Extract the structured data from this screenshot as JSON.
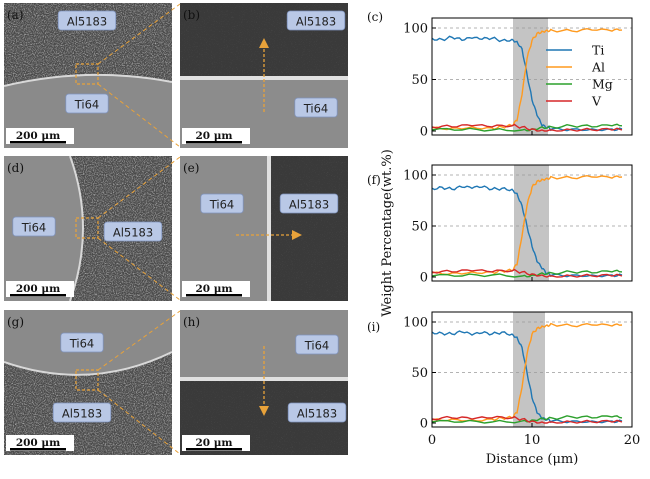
{
  "micrographs": [
    {
      "letter": "(a)",
      "labels": [
        "Al5183",
        "Ti64"
      ],
      "scale": "200 μm"
    },
    {
      "letter": "(b)",
      "labels": [
        "Al5183",
        "Ti64"
      ],
      "scale": "20 μm"
    },
    {
      "letter": "(d)",
      "labels": [
        "Ti64",
        "Al5183"
      ],
      "scale": "200 μm"
    },
    {
      "letter": "(e)",
      "labels": [
        "Ti64",
        "Al5183"
      ],
      "scale": "20 μm"
    },
    {
      "letter": "(g)",
      "labels": [
        "Ti64",
        "Al5183"
      ],
      "scale": "200 μm"
    },
    {
      "letter": "(h)",
      "labels": [
        "Ti64",
        "Al5183"
      ],
      "scale": "20 μm"
    }
  ],
  "chart_data": [
    {
      "type": "line",
      "panel": "(c)",
      "xlabel": "",
      "ylabel": "",
      "xlim": [
        0,
        20
      ],
      "ylim": [
        0,
        100
      ],
      "yticks": [
        "0",
        "50",
        "100"
      ],
      "xticks": [],
      "interface": [
        8.1,
        11.6
      ],
      "legend": {
        "placement": "inside-right",
        "entries": [
          "Ti",
          "Al",
          "Mg",
          "V"
        ]
      },
      "colors": {
        "Ti": "#1f77b4",
        "Al": "#ff9a1f",
        "Mg": "#2ca02c",
        "V": "#d62728"
      },
      "series": [
        {
          "name": "Ti",
          "x": [
            0,
            1,
            2,
            3,
            4,
            5,
            6,
            7,
            8,
            8.5,
            9,
            9.5,
            10,
            10.5,
            11,
            11.5,
            12,
            14,
            16,
            18,
            19
          ],
          "values": [
            90,
            89,
            91,
            88,
            90,
            89,
            90,
            88,
            89,
            87,
            80,
            55,
            30,
            15,
            5,
            3,
            2,
            2,
            2,
            2,
            2
          ]
        },
        {
          "name": "Al",
          "x": [
            0,
            2,
            4,
            6,
            7,
            8,
            8.5,
            9,
            9.5,
            10,
            10.5,
            11,
            11.5,
            12,
            14,
            16,
            18,
            19
          ],
          "values": [
            3,
            3,
            4,
            3,
            4,
            5,
            10,
            35,
            70,
            88,
            95,
            97,
            98,
            98,
            97,
            98,
            97,
            98
          ]
        },
        {
          "name": "Mg",
          "x": [
            0,
            3,
            6,
            9,
            10,
            11,
            12,
            14,
            16,
            18,
            19
          ],
          "values": [
            1,
            1,
            1,
            1,
            2,
            4,
            4,
            5,
            4,
            5,
            5
          ]
        },
        {
          "name": "V",
          "x": [
            0,
            2,
            4,
            6,
            8,
            9,
            10,
            11,
            12,
            14,
            16,
            18,
            19
          ],
          "values": [
            4,
            4,
            5,
            4,
            5,
            4,
            2,
            1,
            1,
            1,
            1,
            1,
            1
          ]
        }
      ]
    },
    {
      "type": "line",
      "panel": "(f)",
      "xlabel": "",
      "ylabel": "Weight Percentage(wt.%)",
      "xlim": [
        0,
        20
      ],
      "ylim": [
        0,
        100
      ],
      "yticks": [
        "0",
        "50",
        "100"
      ],
      "xticks": [],
      "interface": [
        8.2,
        11.7
      ],
      "series": [
        {
          "name": "Ti",
          "x": [
            0,
            1,
            2,
            3,
            4,
            5,
            6,
            7,
            8,
            8.5,
            9,
            9.5,
            10,
            10.5,
            11,
            11.5,
            12,
            14,
            16,
            18,
            19
          ],
          "values": [
            87,
            88,
            86,
            88,
            87,
            88,
            86,
            87,
            86,
            82,
            70,
            50,
            30,
            15,
            8,
            3,
            2,
            2,
            2,
            2,
            2
          ]
        },
        {
          "name": "Al",
          "x": [
            0,
            2,
            4,
            6,
            7,
            8,
            8.5,
            9,
            9.5,
            10,
            10.5,
            11,
            11.5,
            12,
            14,
            16,
            18,
            19
          ],
          "values": [
            4,
            4,
            5,
            5,
            6,
            6,
            12,
            40,
            70,
            88,
            94,
            96,
            97,
            98,
            97,
            98,
            97,
            98
          ]
        },
        {
          "name": "Mg",
          "x": [
            0,
            3,
            6,
            9,
            10,
            11,
            12,
            14,
            16,
            18,
            19
          ],
          "values": [
            1,
            1,
            2,
            1,
            2,
            4,
            4,
            5,
            4,
            5,
            5
          ]
        },
        {
          "name": "V",
          "x": [
            0,
            2,
            4,
            6,
            8,
            9,
            10,
            11,
            12,
            14,
            16,
            18,
            19
          ],
          "values": [
            5,
            5,
            6,
            5,
            6,
            5,
            3,
            2,
            1,
            1,
            1,
            1,
            1
          ]
        }
      ]
    },
    {
      "type": "line",
      "panel": "(i)",
      "xlabel": "Distance (μm)",
      "ylabel": "",
      "xlim": [
        0,
        20
      ],
      "ylim": [
        0,
        100
      ],
      "yticks": [
        "0",
        "50",
        "100"
      ],
      "xticks": [
        "0",
        "10",
        "20"
      ],
      "interface": [
        8.1,
        11.3
      ],
      "series": [
        {
          "name": "Ti",
          "x": [
            0,
            1,
            2,
            3,
            4,
            5,
            6,
            7,
            8,
            8.5,
            9,
            9.5,
            10,
            10.5,
            11,
            11.5,
            12,
            14,
            16,
            18,
            19
          ],
          "values": [
            90,
            89,
            88,
            90,
            87,
            89,
            88,
            90,
            88,
            85,
            75,
            50,
            25,
            10,
            4,
            3,
            2,
            2,
            2,
            2,
            2
          ]
        },
        {
          "name": "Al",
          "x": [
            0,
            2,
            4,
            6,
            7,
            8,
            8.5,
            9,
            9.5,
            10,
            10.5,
            11,
            11.5,
            12,
            14,
            16,
            18,
            19
          ],
          "values": [
            3,
            4,
            3,
            4,
            5,
            5,
            10,
            35,
            68,
            88,
            94,
            96,
            97,
            98,
            96,
            97,
            96,
            97
          ]
        },
        {
          "name": "Mg",
          "x": [
            0,
            3,
            6,
            9,
            10,
            11,
            12,
            14,
            16,
            18,
            19
          ],
          "values": [
            1,
            1,
            1,
            2,
            3,
            5,
            5,
            6,
            5,
            6,
            5
          ]
        },
        {
          "name": "V",
          "x": [
            0,
            2,
            4,
            6,
            8,
            9,
            10,
            11,
            12,
            14,
            16,
            18,
            19
          ],
          "values": [
            4,
            5,
            4,
            5,
            5,
            4,
            2,
            1,
            1,
            1,
            1,
            1,
            1
          ]
        }
      ]
    }
  ]
}
